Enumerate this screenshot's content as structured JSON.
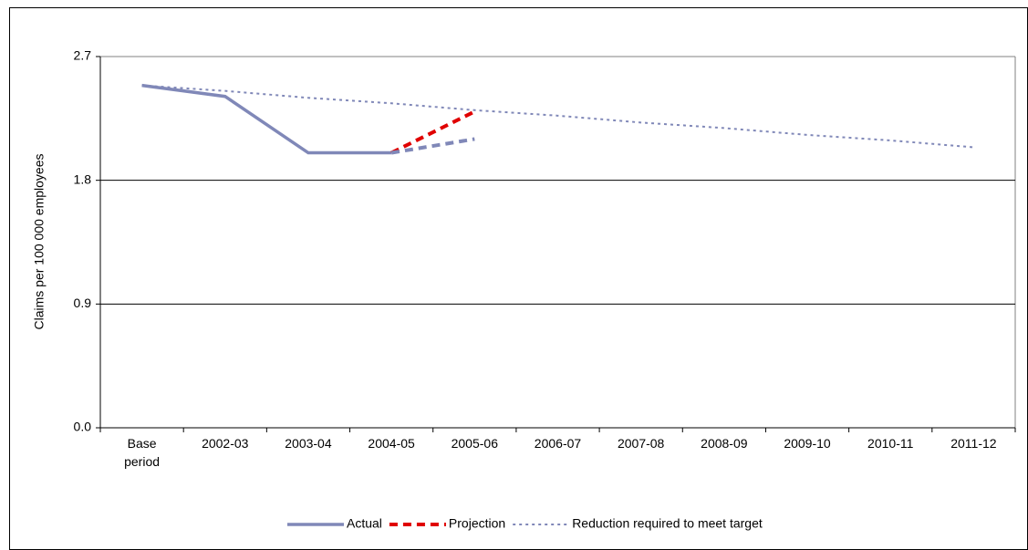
{
  "chart_data": {
    "type": "line",
    "y_label": "Claims per 100 000 employees",
    "categories": [
      "Base period",
      "2002-03",
      "2003-04",
      "2004-05",
      "2005-06",
      "2006-07",
      "2007-08",
      "2008-09",
      "2009-10",
      "2010-11",
      "2011-12"
    ],
    "series": [
      {
        "name": "Actual",
        "color": "#8088b8",
        "style": "solid",
        "values": [
          2.49,
          2.41,
          2.0,
          2.0,
          null,
          null,
          null,
          null,
          null,
          null,
          null
        ]
      },
      {
        "name": "Projection",
        "color": "#e00000",
        "style": "dashed",
        "values": [
          null,
          null,
          null,
          2.0,
          2.3,
          null,
          null,
          null,
          null,
          null,
          null
        ]
      },
      {
        "color": "#8088b8",
        "style": "dashed",
        "values": [
          null,
          null,
          null,
          2.0,
          2.1,
          null,
          null,
          null,
          null,
          null,
          null
        ]
      },
      {
        "name": "Reduction required to meet target",
        "color": "#8088b8",
        "style": "dotted",
        "values": [
          2.49,
          2.45,
          2.4,
          2.36,
          2.31,
          2.27,
          2.22,
          2.18,
          2.13,
          2.09,
          2.04
        ]
      }
    ],
    "ylim": [
      0,
      2.7
    ],
    "yticks": [
      {
        "value": 0,
        "label": "0.0"
      },
      0.9,
      1.8,
      2.7
    ],
    "grid": true,
    "legend": "bottom"
  }
}
